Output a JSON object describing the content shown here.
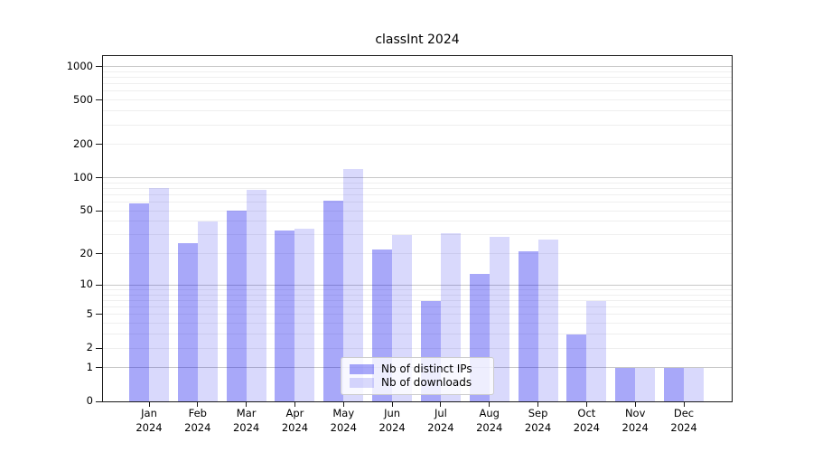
{
  "title": "classInt 2024",
  "chart_data": {
    "type": "bar",
    "title": "classInt 2024",
    "categories": [
      "Jan",
      "Feb",
      "Mar",
      "Apr",
      "May",
      "Jun",
      "Jul",
      "Aug",
      "Sep",
      "Oct",
      "Nov",
      "Dec"
    ],
    "year_label": "2024",
    "series": [
      {
        "name": "Nb of distinct IPs",
        "color": "rgba(0,0,238,0.34)",
        "values": [
          58,
          25,
          50,
          33,
          62,
          22,
          7,
          13,
          21,
          3,
          1,
          1
        ]
      },
      {
        "name": "Nb of downloads",
        "color": "rgba(0,0,238,0.15)",
        "values": [
          81,
          40,
          78,
          34,
          120,
          30,
          31,
          29,
          27,
          7,
          1,
          1
        ]
      }
    ],
    "yscale": "log1p",
    "yticks": [
      0,
      1,
      2,
      5,
      10,
      20,
      50,
      100,
      200,
      500,
      1000
    ],
    "ylim": [
      0,
      1265
    ],
    "grid": true,
    "legend_position": "lower-center",
    "colors": {
      "decade_gridline": "#c8c8c8",
      "minor_gridline": "#efefef",
      "spine": "#1a1a1a"
    }
  }
}
